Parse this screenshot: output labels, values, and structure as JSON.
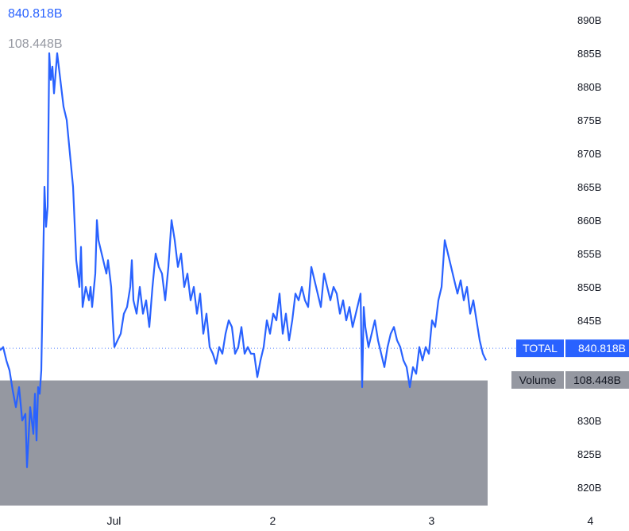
{
  "header": {
    "total_value": "840.818B",
    "volume_value": "108.448B"
  },
  "colors": {
    "line": "#2962ff",
    "volume": "#9598a1",
    "axis_text": "#131722"
  },
  "chart_data": {
    "type": "line",
    "title": "",
    "xlabel": "",
    "ylabel": "",
    "ylim": [
      816,
      892
    ],
    "x_ticks": [
      {
        "label": "Jul",
        "x": 0.717
      },
      {
        "label": "2",
        "x": 1.717
      },
      {
        "label": "3",
        "x": 2.717
      },
      {
        "label": "4",
        "x": 3.717
      }
    ],
    "y_ticks": [
      {
        "label": "890B",
        "value": 890
      },
      {
        "label": "885B",
        "value": 885
      },
      {
        "label": "880B",
        "value": 880
      },
      {
        "label": "875B",
        "value": 875
      },
      {
        "label": "870B",
        "value": 870
      },
      {
        "label": "865B",
        "value": 865
      },
      {
        "label": "860B",
        "value": 860
      },
      {
        "label": "855B",
        "value": 855
      },
      {
        "label": "850B",
        "value": 850
      },
      {
        "label": "845B",
        "value": 845
      },
      {
        "label": "830B",
        "value": 830
      },
      {
        "label": "825B",
        "value": 825
      },
      {
        "label": "820B",
        "value": 820
      }
    ],
    "series": [
      {
        "name": "TOTAL",
        "last_value_label": "840.818B",
        "last_value": 840.818,
        "points": [
          [
            0.0,
            840.5
          ],
          [
            0.02,
            841
          ],
          [
            0.04,
            839
          ],
          [
            0.06,
            837.5
          ],
          [
            0.08,
            834.5
          ],
          [
            0.1,
            832
          ],
          [
            0.12,
            835
          ],
          [
            0.14,
            830
          ],
          [
            0.16,
            831
          ],
          [
            0.17,
            823
          ],
          [
            0.19,
            832
          ],
          [
            0.21,
            828
          ],
          [
            0.22,
            834
          ],
          [
            0.23,
            827
          ],
          [
            0.24,
            835
          ],
          [
            0.25,
            834
          ],
          [
            0.26,
            837.5
          ],
          [
            0.28,
            865
          ],
          [
            0.29,
            859
          ],
          [
            0.3,
            862
          ],
          [
            0.31,
            885
          ],
          [
            0.32,
            881
          ],
          [
            0.33,
            883
          ],
          [
            0.34,
            879
          ],
          [
            0.36,
            885
          ],
          [
            0.38,
            881
          ],
          [
            0.4,
            877
          ],
          [
            0.42,
            875
          ],
          [
            0.44,
            870
          ],
          [
            0.46,
            865
          ],
          [
            0.48,
            854
          ],
          [
            0.5,
            850
          ],
          [
            0.51,
            856
          ],
          [
            0.52,
            847
          ],
          [
            0.54,
            850
          ],
          [
            0.56,
            848
          ],
          [
            0.57,
            850
          ],
          [
            0.58,
            847
          ],
          [
            0.6,
            852
          ],
          [
            0.61,
            860
          ],
          [
            0.62,
            857
          ],
          [
            0.63,
            856
          ],
          [
            0.65,
            854
          ],
          [
            0.67,
            852
          ],
          [
            0.68,
            854
          ],
          [
            0.7,
            850
          ],
          [
            0.71,
            845
          ],
          [
            0.72,
            841
          ],
          [
            0.74,
            842
          ],
          [
            0.76,
            843
          ],
          [
            0.78,
            846
          ],
          [
            0.8,
            847
          ],
          [
            0.82,
            850
          ],
          [
            0.83,
            854
          ],
          [
            0.84,
            848
          ],
          [
            0.86,
            846
          ],
          [
            0.88,
            850
          ],
          [
            0.9,
            846
          ],
          [
            0.92,
            848
          ],
          [
            0.94,
            844
          ],
          [
            0.96,
            850
          ],
          [
            0.98,
            855
          ],
          [
            1.0,
            853
          ],
          [
            1.02,
            852
          ],
          [
            1.04,
            848
          ],
          [
            1.06,
            853
          ],
          [
            1.08,
            860
          ],
          [
            1.1,
            857
          ],
          [
            1.12,
            853
          ],
          [
            1.14,
            855
          ],
          [
            1.16,
            850
          ],
          [
            1.18,
            852
          ],
          [
            1.2,
            848
          ],
          [
            1.22,
            850
          ],
          [
            1.24,
            846
          ],
          [
            1.26,
            849
          ],
          [
            1.28,
            843
          ],
          [
            1.3,
            846
          ],
          [
            1.32,
            841
          ],
          [
            1.34,
            840
          ],
          [
            1.36,
            838.5
          ],
          [
            1.38,
            841
          ],
          [
            1.4,
            840
          ],
          [
            1.42,
            843
          ],
          [
            1.44,
            845
          ],
          [
            1.46,
            844
          ],
          [
            1.48,
            840
          ],
          [
            1.5,
            841
          ],
          [
            1.52,
            844
          ],
          [
            1.54,
            840
          ],
          [
            1.56,
            841
          ],
          [
            1.58,
            840
          ],
          [
            1.6,
            840
          ],
          [
            1.62,
            836.5
          ],
          [
            1.64,
            839
          ],
          [
            1.66,
            841
          ],
          [
            1.68,
            845
          ],
          [
            1.7,
            843
          ],
          [
            1.72,
            846
          ],
          [
            1.74,
            845
          ],
          [
            1.76,
            849
          ],
          [
            1.78,
            843
          ],
          [
            1.8,
            846
          ],
          [
            1.82,
            842
          ],
          [
            1.84,
            845
          ],
          [
            1.86,
            849
          ],
          [
            1.88,
            848
          ],
          [
            1.9,
            850
          ],
          [
            1.92,
            848
          ],
          [
            1.94,
            847
          ],
          [
            1.96,
            853
          ],
          [
            1.98,
            851
          ],
          [
            2.0,
            849
          ],
          [
            2.02,
            847
          ],
          [
            2.04,
            852
          ],
          [
            2.06,
            850
          ],
          [
            2.08,
            848
          ],
          [
            2.1,
            850
          ],
          [
            2.12,
            849
          ],
          [
            2.14,
            846
          ],
          [
            2.16,
            848
          ],
          [
            2.18,
            845
          ],
          [
            2.2,
            847
          ],
          [
            2.22,
            844
          ],
          [
            2.24,
            846
          ],
          [
            2.26,
            848
          ],
          [
            2.27,
            849
          ],
          [
            2.28,
            835
          ],
          [
            2.29,
            847
          ],
          [
            2.3,
            844
          ],
          [
            2.32,
            841
          ],
          [
            2.34,
            843
          ],
          [
            2.36,
            845
          ],
          [
            2.38,
            842
          ],
          [
            2.4,
            840
          ],
          [
            2.42,
            838
          ],
          [
            2.44,
            841
          ],
          [
            2.46,
            843
          ],
          [
            2.48,
            844
          ],
          [
            2.5,
            842
          ],
          [
            2.52,
            841
          ],
          [
            2.54,
            839
          ],
          [
            2.56,
            838
          ],
          [
            2.58,
            835
          ],
          [
            2.6,
            838
          ],
          [
            2.62,
            837
          ],
          [
            2.64,
            841
          ],
          [
            2.66,
            839
          ],
          [
            2.68,
            841
          ],
          [
            2.7,
            840
          ],
          [
            2.72,
            845
          ],
          [
            2.74,
            844
          ],
          [
            2.76,
            848
          ],
          [
            2.78,
            850
          ],
          [
            2.8,
            857
          ],
          [
            2.82,
            855
          ],
          [
            2.84,
            853
          ],
          [
            2.86,
            851
          ],
          [
            2.88,
            849
          ],
          [
            2.9,
            851
          ],
          [
            2.92,
            848
          ],
          [
            2.94,
            850
          ],
          [
            2.96,
            846
          ],
          [
            2.98,
            848
          ],
          [
            3.0,
            845
          ],
          [
            3.02,
            842
          ],
          [
            3.04,
            840
          ],
          [
            3.06,
            839
          ]
        ]
      }
    ],
    "volume": {
      "name": "Volume",
      "last_value_label": "108.448B",
      "level": 836,
      "x_end": 3.07
    }
  }
}
